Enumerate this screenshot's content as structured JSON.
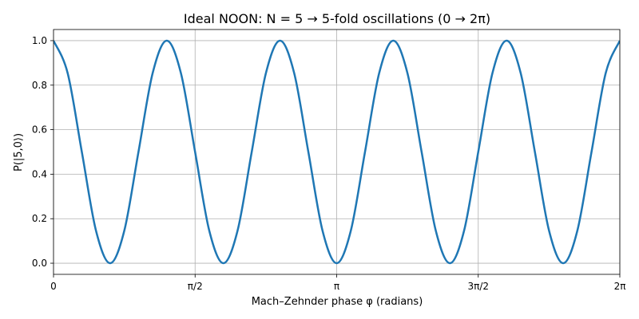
{
  "chart_data": {
    "type": "line",
    "title": "Ideal NOON: N = 5  →  5-fold oscillations (0 → 2π)",
    "xlabel": "Mach–Zehnder phase φ (radians)",
    "ylabel": "P(|5,0⟩)",
    "xlim": [
      0,
      6.283185307
    ],
    "ylim": [
      -0.05,
      1.05
    ],
    "grid": true,
    "xticks": [
      {
        "value": 0,
        "label": "0"
      },
      {
        "value": 1.570796327,
        "label": "π/2"
      },
      {
        "value": 3.141592654,
        "label": "π"
      },
      {
        "value": 4.71238898,
        "label": "3π/2"
      },
      {
        "value": 6.283185307,
        "label": "2π"
      }
    ],
    "yticks": [
      {
        "value": 0.0,
        "label": "0.0"
      },
      {
        "value": 0.2,
        "label": "0.2"
      },
      {
        "value": 0.4,
        "label": "0.4"
      },
      {
        "value": 0.6,
        "label": "0.6"
      },
      {
        "value": 0.8,
        "label": "0.8"
      },
      {
        "value": 1.0,
        "label": "1.0"
      }
    ],
    "series": [
      {
        "color": "#1f77b4",
        "x": [
          0,
          0.1571,
          0.3142,
          0.4712,
          0.6283,
          0.7854,
          0.9425,
          1.0996,
          1.2566,
          1.4137,
          1.5708,
          1.7279,
          1.885,
          2.042,
          2.1991,
          2.3562,
          2.5133,
          2.6704,
          2.8274,
          2.9845,
          3.1416,
          3.2987,
          3.4558,
          3.6128,
          3.7699,
          3.927,
          4.0841,
          4.2412,
          4.3982,
          4.5553,
          4.7124,
          4.8695,
          5.0265,
          5.1836,
          5.3407,
          5.4978,
          5.6549,
          5.8119,
          5.969,
          6.1261,
          6.2832
        ],
        "y": [
          1.0,
          0.8536,
          0.5,
          0.1464,
          0.0,
          0.1464,
          0.5,
          0.8536,
          1.0,
          0.8536,
          0.5,
          0.1464,
          0.0,
          0.1464,
          0.5,
          0.8536,
          1.0,
          0.8536,
          0.5,
          0.1464,
          0.0,
          0.1464,
          0.5,
          0.8536,
          1.0,
          0.8536,
          0.5,
          0.1464,
          0.0,
          0.1464,
          0.5,
          0.8536,
          1.0,
          0.8536,
          0.5,
          0.1464,
          0.0,
          0.1464,
          0.5,
          0.8536,
          1.0
        ]
      }
    ]
  }
}
